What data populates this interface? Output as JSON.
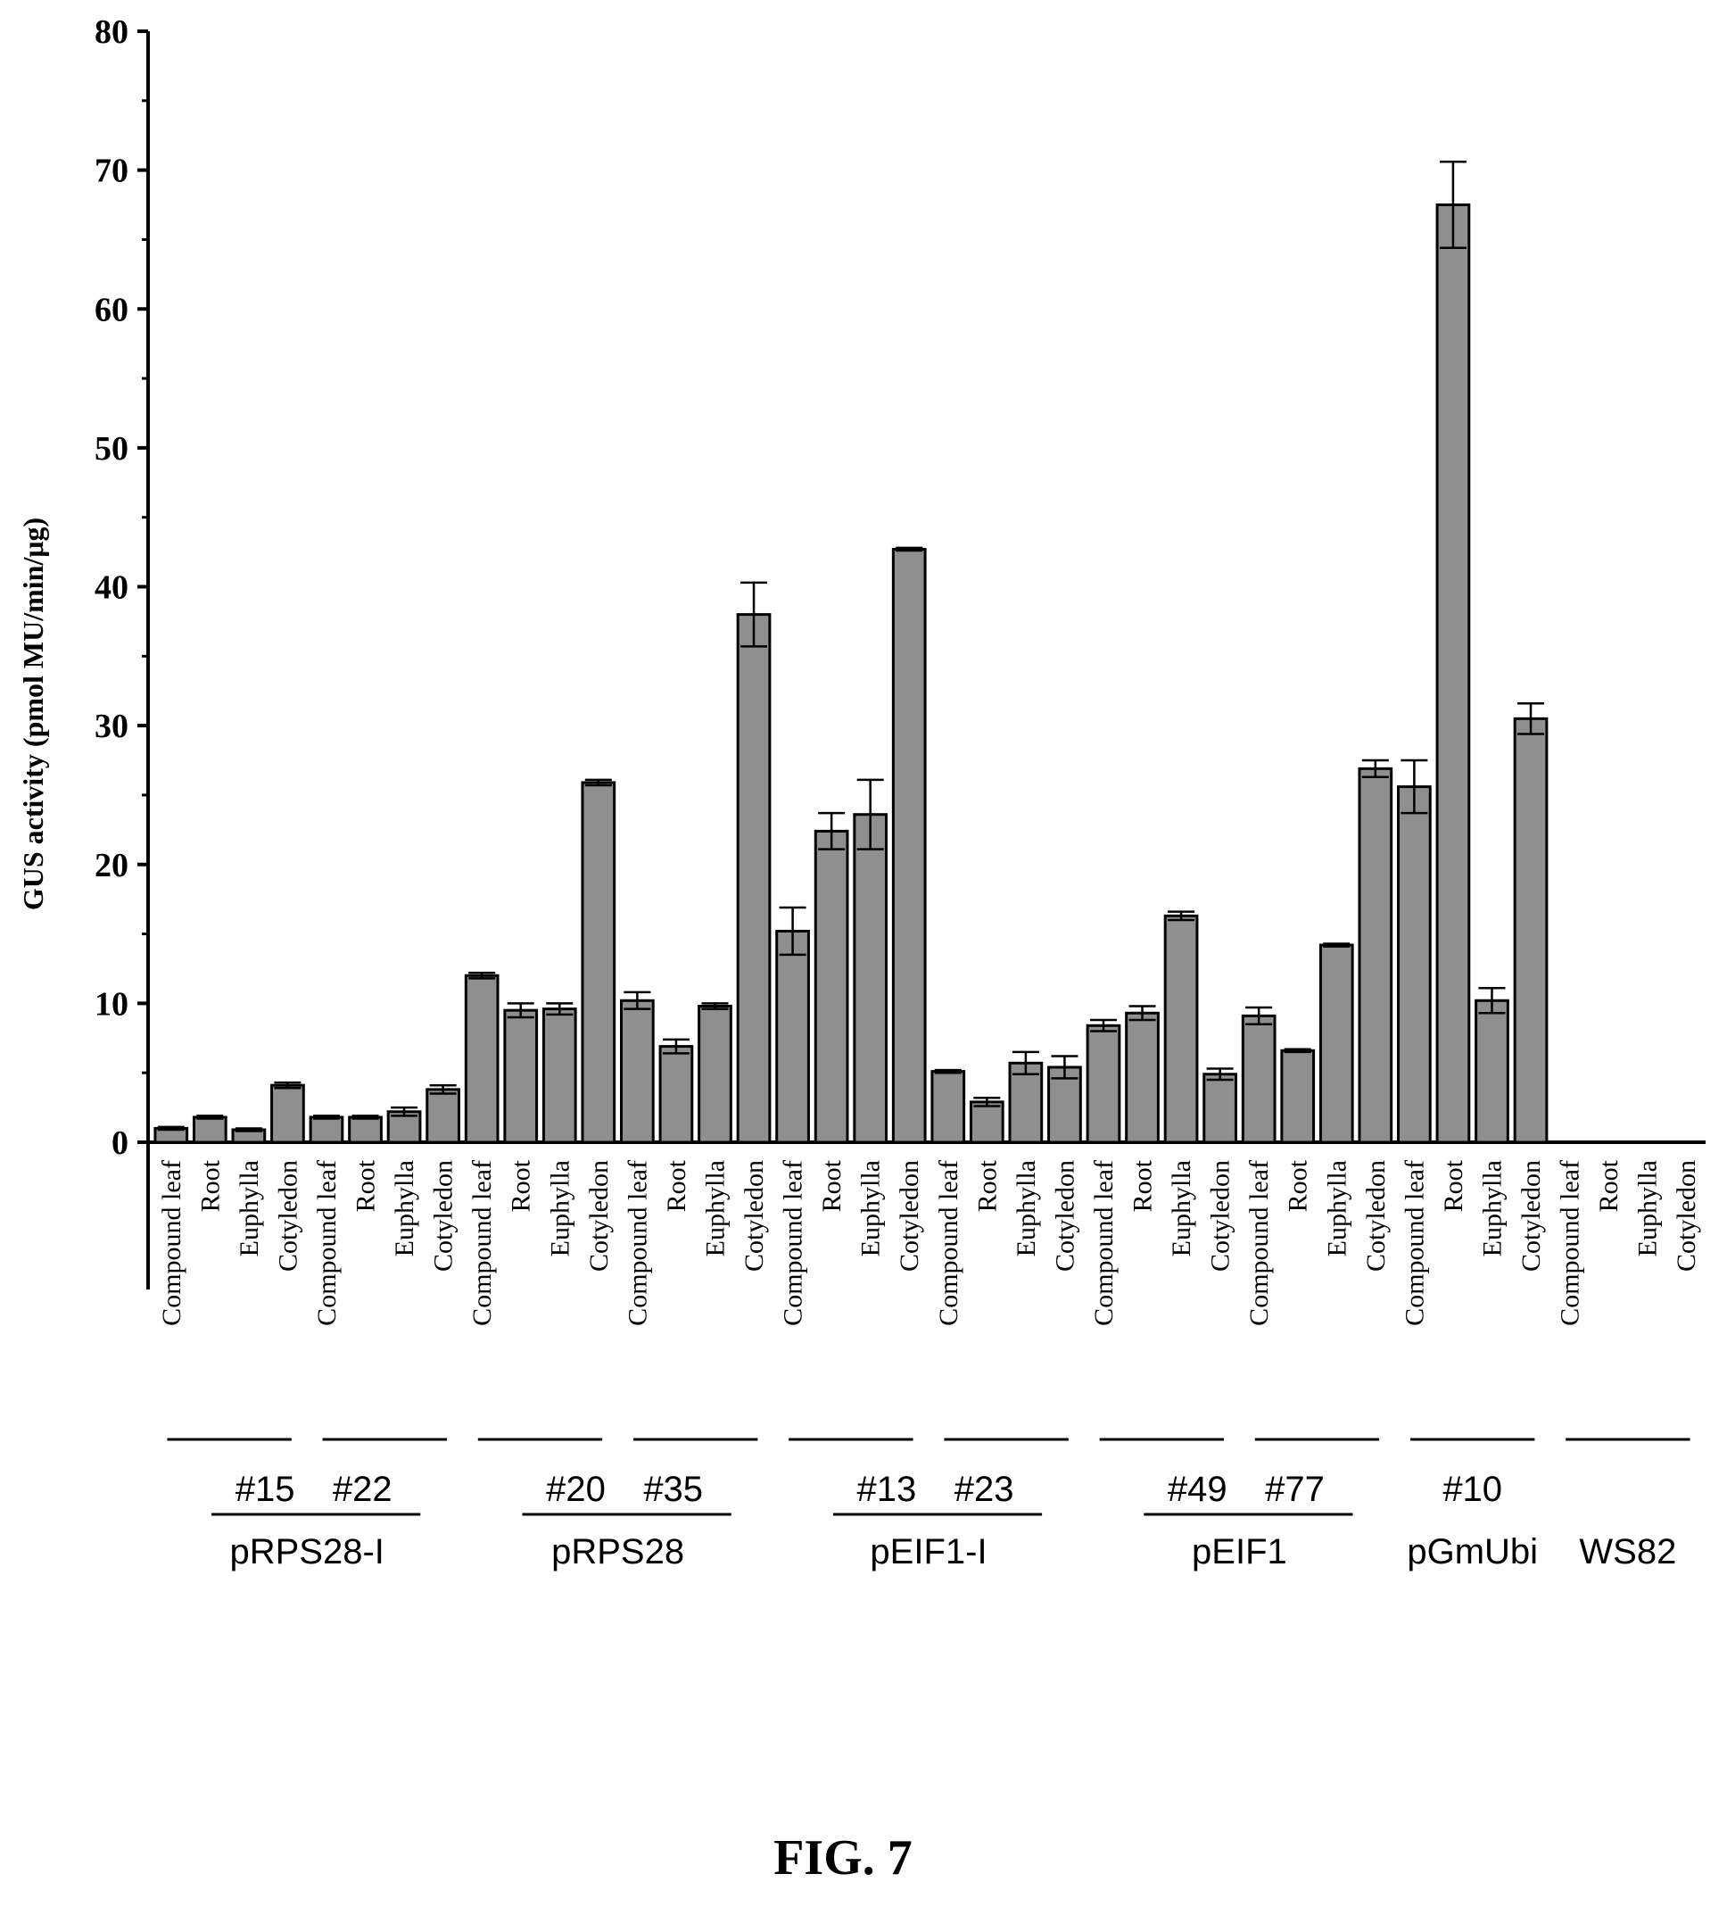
{
  "chart_data": {
    "type": "bar",
    "ylabel": "GUS activity (pmol MU/min/μg)",
    "xlabel": "",
    "ylim": [
      0,
      80
    ],
    "yticks": [
      0,
      10,
      20,
      30,
      40,
      50,
      60,
      70,
      80
    ],
    "grid": false,
    "bar_color": "#8f8f8f",
    "tissues": [
      "Compound leaf",
      "Root",
      "Euphylla",
      "Cotyledon"
    ],
    "lines": [
      {
        "name": "#15",
        "values": [
          1.0,
          1.8,
          0.9,
          4.1
        ],
        "errors": [
          0.1,
          0.1,
          0.1,
          0.2
        ]
      },
      {
        "name": "#22",
        "values": [
          1.8,
          1.8,
          2.2,
          3.8
        ],
        "errors": [
          0.1,
          0.1,
          0.3,
          0.3
        ]
      },
      {
        "name": "#20",
        "values": [
          12.0,
          9.5,
          9.6,
          25.9
        ],
        "errors": [
          0.2,
          0.5,
          0.4,
          0.2
        ]
      },
      {
        "name": "#35",
        "values": [
          10.2,
          6.9,
          9.8,
          38.0
        ],
        "errors": [
          0.6,
          0.5,
          0.2,
          2.3
        ]
      },
      {
        "name": "#13",
        "values": [
          15.2,
          22.4,
          23.6,
          42.7
        ],
        "errors": [
          1.7,
          1.3,
          2.5,
          0.1
        ]
      },
      {
        "name": "#23",
        "values": [
          5.1,
          2.9,
          5.7,
          5.4
        ],
        "errors": [
          0.1,
          0.3,
          0.8,
          0.8
        ]
      },
      {
        "name": "#49",
        "values": [
          8.4,
          9.3,
          16.3,
          4.9
        ],
        "errors": [
          0.4,
          0.5,
          0.3,
          0.4
        ]
      },
      {
        "name": "#77",
        "values": [
          9.1,
          6.6,
          14.2,
          26.9
        ],
        "errors": [
          0.6,
          0.1,
          0.1,
          0.6
        ]
      },
      {
        "name": "#10",
        "values": [
          25.6,
          67.5,
          10.2,
          30.5
        ],
        "errors": [
          1.9,
          3.1,
          0.9,
          1.1
        ]
      },
      {
        "name": "",
        "values": [
          0,
          0,
          0,
          0
        ],
        "errors": [
          0,
          0,
          0,
          0
        ]
      }
    ],
    "constructs": [
      {
        "name": "pRPS28-I",
        "lines": [
          0,
          1
        ]
      },
      {
        "name": "pRPS28",
        "lines": [
          2,
          3
        ]
      },
      {
        "name": "pEIF1-I",
        "lines": [
          4,
          5
        ]
      },
      {
        "name": "pEIF1",
        "lines": [
          6,
          7
        ]
      },
      {
        "name": "pGmUbi",
        "lines": [
          8
        ]
      },
      {
        "name": "WS82",
        "lines": [
          9
        ]
      }
    ]
  },
  "figure": {
    "caption": "FIG. 7"
  }
}
